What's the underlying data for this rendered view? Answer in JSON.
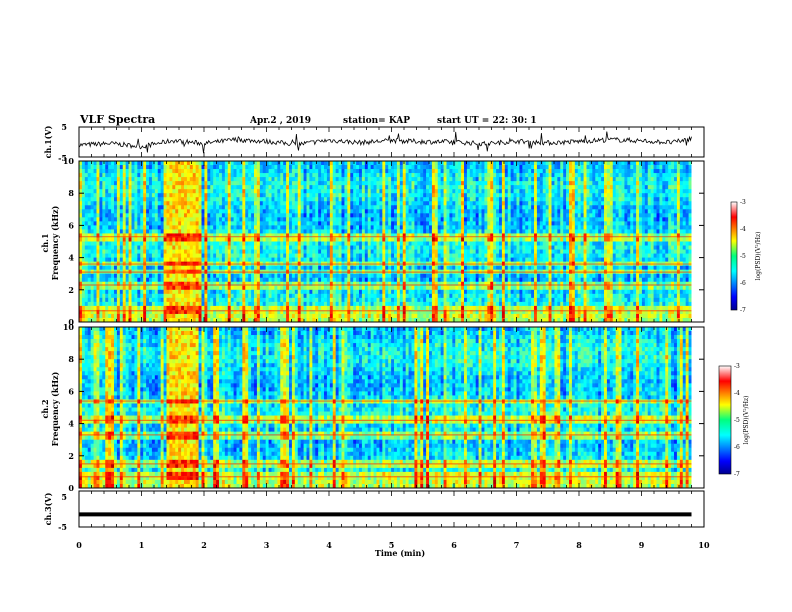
{
  "header": {
    "title": "VLF Spectra",
    "date": "Apr.2 , 2019",
    "station": "station= KAP",
    "start": "start UT = 22: 30: 1"
  },
  "colors": {
    "spectrum_low": "#00008f",
    "spectrum_mid": "#00ff7f",
    "spectrum_high": "#ff0000",
    "trace": "#000000"
  },
  "chart_data": [
    {
      "type": "line",
      "panel": "ch1-waveform",
      "ylabel": "ch.1(V)",
      "ylim": [
        -5,
        5
      ],
      "yticks": [
        "5",
        "-5"
      ],
      "x": [
        0,
        0.5,
        1,
        1.5,
        2,
        2.5,
        3,
        3.5,
        4,
        4.5,
        5,
        5.5,
        6,
        6.5,
        7,
        7.5,
        8,
        8.5,
        9,
        9.5,
        9.8
      ],
      "values": [
        -1,
        -0.5,
        -1.5,
        0.5,
        -0.5,
        0.8,
        0.2,
        -0.8,
        0.6,
        -0.2,
        0.5,
        0.1,
        0,
        -0.6,
        0.3,
        -0.3,
        0.2,
        0.8,
        0.4,
        -0.2,
        1.2
      ]
    },
    {
      "type": "heatmap",
      "panel": "ch1-spectrogram",
      "ylabel": "ch.1",
      "ylabel2": "Frequency (kHz)",
      "ylim": [
        0,
        10
      ],
      "yticks": [
        "0",
        "2",
        "4",
        "6",
        "8",
        "10"
      ],
      "colorbar": {
        "label": "log(PSD)(V²/Hz)",
        "range": [
          -7,
          -3
        ],
        "ticks": [
          "-3",
          "-4",
          "-5",
          "-6",
          "-7"
        ]
      },
      "bands_khz": [
        0.7,
        2.3,
        3.1,
        3.6,
        5.3
      ],
      "burst_min": [
        1.4,
        1.9
      ]
    },
    {
      "type": "heatmap",
      "panel": "ch2-spectrogram",
      "ylabel": "ch.2",
      "ylabel2": "Frequency (kHz)",
      "ylim": [
        0,
        10
      ],
      "yticks": [
        "0",
        "2",
        "4",
        "6",
        "8",
        "10"
      ],
      "colorbar": {
        "label": "log(PSD)(V²/Hz)",
        "range": [
          -7,
          -3
        ],
        "ticks": [
          "-3",
          "-4",
          "-5",
          "-6",
          "-7"
        ]
      },
      "bands_khz": [
        0.7,
        1.5,
        3.3,
        4.2,
        5.4
      ],
      "burst_min": [
        1.4,
        1.9
      ]
    },
    {
      "type": "line",
      "panel": "ch3-waveform",
      "ylabel": "ch.3(V)",
      "ylim": [
        -5,
        5
      ],
      "yticks": [
        "5",
        "-5"
      ],
      "x": [
        0,
        9.8
      ],
      "values": [
        -1.8,
        -1.8
      ]
    }
  ],
  "xaxis": {
    "label": "Time (min)",
    "range": [
      0,
      10
    ],
    "ticks": [
      "0",
      "1",
      "2",
      "3",
      "4",
      "5",
      "6",
      "7",
      "8",
      "9",
      "10"
    ]
  }
}
